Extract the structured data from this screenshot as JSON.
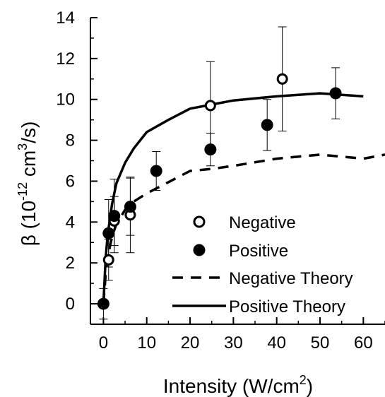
{
  "chart_data": {
    "type": "scatter",
    "title": "",
    "xlabel": "Intensity (W/cm",
    "xlabel_sup": "2",
    "xlabel_tail": ")",
    "ylabel_prefix": "β (10",
    "ylabel_exp": "-12",
    "ylabel_mid": " cm",
    "ylabel_sup": "3",
    "ylabel_tail": "/s)",
    "xlim": [
      -3,
      65
    ],
    "ylim": [
      -1,
      14
    ],
    "xticks": [
      0,
      10,
      20,
      30,
      40,
      50,
      60
    ],
    "yticks": [
      0,
      2,
      4,
      6,
      8,
      10,
      12,
      14
    ],
    "legend_position": "center-right",
    "series": [
      {
        "name": "Negative",
        "kind": "open-circle",
        "points": [
          {
            "x": 0,
            "y": 0,
            "err": 0
          },
          {
            "x": 1.2,
            "y": 2.15,
            "err": 1.0
          },
          {
            "x": 2.5,
            "y": 4.05,
            "err": 1.2
          },
          {
            "x": 6.2,
            "y": 4.35,
            "err": 1.85
          },
          {
            "x": 24.7,
            "y": 9.7,
            "err": 2.15
          },
          {
            "x": 41.3,
            "y": 11.0,
            "err": 2.55
          }
        ]
      },
      {
        "name": "Positive",
        "kind": "filled-circle",
        "points": [
          {
            "x": 0,
            "y": 0,
            "err": 0.75
          },
          {
            "x": 1.2,
            "y": 3.45,
            "err": 1.65
          },
          {
            "x": 2.5,
            "y": 4.3,
            "err": 1.8
          },
          {
            "x": 6.2,
            "y": 4.75,
            "err": 1.4
          },
          {
            "x": 12.2,
            "y": 6.5,
            "err": 0.95
          },
          {
            "x": 24.7,
            "y": 7.55,
            "err": 0.8
          },
          {
            "x": 37.8,
            "y": 8.75,
            "err": 1.25
          },
          {
            "x": 53.6,
            "y": 10.3,
            "err": 1.25
          }
        ]
      },
      {
        "name": "Negative Theory",
        "kind": "dashed-line",
        "x": [
          0,
          0.5,
          1,
          2,
          3,
          5,
          7,
          10,
          15,
          20,
          25,
          30,
          40,
          50,
          60,
          65
        ],
        "y": [
          0,
          1.4,
          2.3,
          3.3,
          3.9,
          4.6,
          5.0,
          5.4,
          5.95,
          6.5,
          6.6,
          6.75,
          7.1,
          7.3,
          7.1,
          7.3
        ]
      },
      {
        "name": "Positive Theory",
        "kind": "solid-line",
        "x": [
          0,
          0.5,
          1,
          2,
          3,
          5,
          7,
          10,
          15,
          20,
          25,
          30,
          40,
          50,
          60
        ],
        "y": [
          0,
          2.2,
          3.4,
          4.9,
          5.9,
          6.9,
          7.6,
          8.4,
          9.0,
          9.55,
          9.75,
          9.95,
          10.15,
          10.3,
          10.15
        ]
      }
    ]
  }
}
